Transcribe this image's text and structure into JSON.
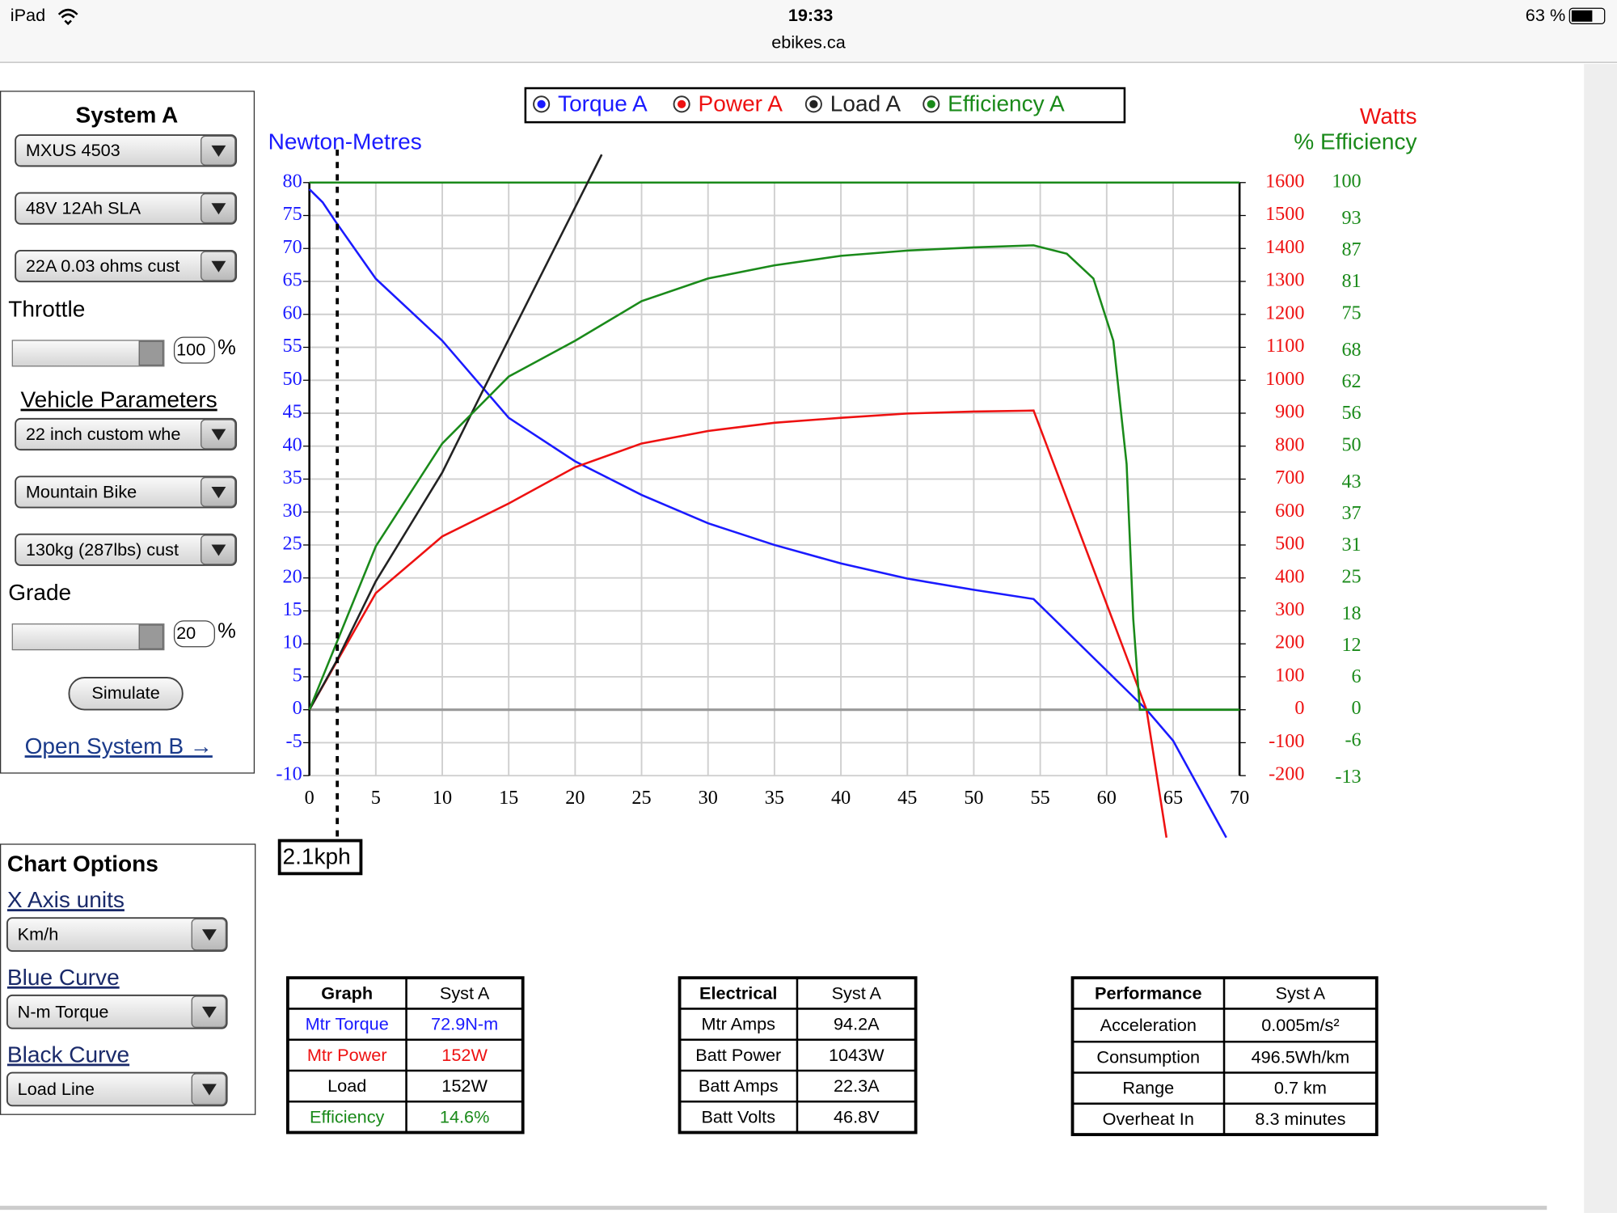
{
  "status_bar": {
    "device": "iPad",
    "time": "19:33",
    "battery": "63 %",
    "url": "ebikes.ca"
  },
  "system_panel": {
    "title": "System A",
    "selects": [
      "MXUS 4503",
      "48V 12Ah SLA",
      "22A 0.03 ohms cust",
      "22 inch custom whe",
      "Mountain Bike",
      "130kg (287lbs) cust"
    ],
    "throttle_label": "Throttle",
    "throttle_value": "100",
    "throttle_unit": "%",
    "vehicle_title": "Vehicle Parameters",
    "grade_label": "Grade",
    "grade_value": "20",
    "grade_unit": "%",
    "simulate": "Simulate",
    "open_b": "Open System B →"
  },
  "chart_options": {
    "title": "Chart Options",
    "items": [
      {
        "label": "X Axis units",
        "value": "Km/h"
      },
      {
        "label": "Blue Curve",
        "value": "N-m Torque"
      },
      {
        "label": "Black Curve",
        "value": "Load Line"
      }
    ]
  },
  "chart_data": {
    "type": "line",
    "y_label": "Newton-Metres",
    "y2_label": "Watts",
    "y3_label": "% Efficiency",
    "xlim": [
      0,
      70
    ],
    "xticks": [
      0,
      5,
      10,
      15,
      20,
      25,
      30,
      35,
      40,
      45,
      50,
      55,
      60,
      65,
      70
    ],
    "ylim": [
      -10,
      80
    ],
    "yticks": [
      -10,
      -5,
      0,
      5,
      10,
      15,
      20,
      25,
      30,
      35,
      40,
      45,
      50,
      55,
      60,
      65,
      70,
      75,
      80
    ],
    "y2lim": [
      -200,
      1600
    ],
    "y2ticks": [
      -200,
      -100,
      0,
      100,
      200,
      300,
      400,
      500,
      600,
      700,
      800,
      900,
      1000,
      1100,
      1200,
      1300,
      1400,
      1500,
      1600
    ],
    "y3lim": [
      -12.5,
      100
    ],
    "y3ticks": [
      -13,
      -6,
      0,
      6,
      12,
      18,
      25,
      31,
      37,
      43,
      50,
      56,
      62,
      68,
      75,
      81,
      87,
      93,
      100
    ],
    "grid": true,
    "series": [
      {
        "name": "Torque A",
        "color": "#1a1aff",
        "axis": "y",
        "x": [
          0,
          1,
          2,
          5,
          10,
          15,
          20,
          25,
          30,
          35,
          40,
          45,
          50,
          54.5,
          63,
          65,
          69
        ],
        "values": [
          79,
          77,
          74,
          65.4,
          56,
          44.3,
          37.7,
          32.6,
          28.3,
          25,
          22.2,
          19.9,
          18.2,
          16.8,
          0,
          -4.7,
          -19.4
        ]
      },
      {
        "name": "Power A",
        "color": "#ee1111",
        "axis": "y2",
        "x": [
          0,
          5,
          10,
          15,
          20,
          25,
          30,
          35,
          40,
          45,
          50,
          54.5,
          63,
          64.5
        ],
        "values": [
          0,
          354,
          526,
          626,
          736,
          808,
          846,
          871,
          886,
          899,
          905,
          908,
          0,
          -388
        ]
      },
      {
        "name": "Load A",
        "color": "#222222",
        "axis": "y2",
        "x": [
          0,
          2.1,
          5,
          10,
          13,
          22
        ],
        "values": [
          0,
          152,
          390,
          720,
          964,
          1685
        ]
      },
      {
        "name": "Efficiency A",
        "color": "#1a8a1a",
        "axis": "y3",
        "x": [
          0,
          5,
          10,
          15,
          20,
          25,
          30,
          35,
          40,
          45,
          50,
          54.5,
          57,
          59,
          60.5,
          61.5,
          62,
          62.5,
          70
        ],
        "values": [
          0,
          31,
          50.5,
          63.2,
          70,
          77.5,
          81.8,
          84.3,
          86.1,
          87.1,
          87.7,
          88.1,
          86.5,
          81.8,
          70,
          46.6,
          17.2,
          0,
          0
        ]
      }
    ],
    "marker": {
      "x": 2.1,
      "label": "2.1kph"
    }
  },
  "tables": [
    {
      "headers": [
        "Graph",
        "Syst A"
      ],
      "row_colors": [
        "#1a1aff",
        "#ee1111",
        "#000000",
        "#1a8a1a"
      ],
      "rows": [
        [
          "Mtr Torque",
          "72.9N-m"
        ],
        [
          "Mtr Power",
          "152W"
        ],
        [
          "Load",
          "152W"
        ],
        [
          "Efficiency",
          "14.6%"
        ]
      ]
    },
    {
      "headers": [
        "Electrical",
        "Syst A"
      ],
      "row_colors": [
        "#000000",
        "#000000",
        "#000000",
        "#000000"
      ],
      "rows": [
        [
          "Mtr Amps",
          "94.2A"
        ],
        [
          "Batt Power",
          "1043W"
        ],
        [
          "Batt Amps",
          "22.3A"
        ],
        [
          "Batt Volts",
          "46.8V"
        ]
      ]
    },
    {
      "headers": [
        "Performance",
        "Syst A"
      ],
      "row_colors": [
        "#000000",
        "#000000",
        "#000000",
        "#000000"
      ],
      "rows": [
        [
          "Acceleration",
          "0.005m/s²"
        ],
        [
          "Consumption",
          "496.5Wh/km"
        ],
        [
          "Range",
          "0.7 km"
        ],
        [
          "Overheat In",
          "8.3 minutes"
        ]
      ]
    }
  ]
}
